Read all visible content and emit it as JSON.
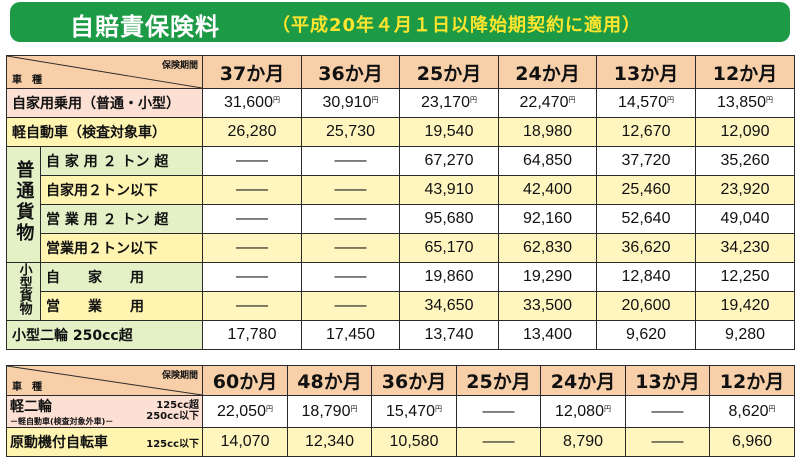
{
  "title": "自賠責保険料",
  "subtitle": "（平成20年４月１日以降始期契約に適用）",
  "table1": {
    "corner_top": "保険期間",
    "corner_bottom": "車　種",
    "periods": [
      "37か月",
      "36か月",
      "25か月",
      "24か月",
      "13か月",
      "12か月"
    ],
    "rows": [
      {
        "label": "自家用乗用（普通・小型）",
        "values": [
          "31,600",
          "30,910",
          "23,170",
          "22,470",
          "14,570",
          "13,850"
        ],
        "yen": true
      },
      {
        "label": "軽自動車（検査対象車）",
        "values": [
          "26,280",
          "25,730",
          "19,540",
          "18,980",
          "12,670",
          "12,090"
        ],
        "yen": false
      }
    ],
    "group_futsu": {
      "side": "普通貨物",
      "rows": [
        {
          "label": "自 家 用 ２ トン 超",
          "values": [
            "――",
            "――",
            "67,270",
            "64,850",
            "37,720",
            "35,260"
          ]
        },
        {
          "label": "自家用２トン以下",
          "values": [
            "――",
            "――",
            "43,910",
            "42,400",
            "25,460",
            "23,920"
          ]
        },
        {
          "label": "営 業 用 ２ トン 超",
          "values": [
            "――",
            "――",
            "95,680",
            "92,160",
            "52,640",
            "49,040"
          ]
        },
        {
          "label": "営業用２トン以下",
          "values": [
            "――",
            "――",
            "65,170",
            "62,830",
            "36,620",
            "34,230"
          ]
        }
      ]
    },
    "group_kogata": {
      "side": "小型貨物",
      "rows": [
        {
          "label": "自　　家　　用",
          "values": [
            "――",
            "――",
            "19,860",
            "19,290",
            "12,840",
            "12,250"
          ]
        },
        {
          "label": "営　　業　　用",
          "values": [
            "――",
            "――",
            "34,650",
            "33,500",
            "20,600",
            "19,420"
          ]
        }
      ]
    },
    "last_row": {
      "label": "小型二輪 250cc超",
      "values": [
        "17,780",
        "17,450",
        "13,740",
        "13,400",
        "9,620",
        "9,280"
      ]
    }
  },
  "table2": {
    "corner_top": "保険期間",
    "corner_bottom": "車　種",
    "periods": [
      "60か月",
      "48か月",
      "36か月",
      "25か月",
      "24か月",
      "13か月",
      "12か月"
    ],
    "row1": {
      "label_main": "軽二輪",
      "label_sub": "－軽自動車(検査対象外車)－",
      "label_right_top": "125cc超",
      "label_right_bottom": "250cc以下",
      "values": [
        "22,050",
        "18,790",
        "15,470",
        "――",
        "12,080",
        "――",
        "8,620"
      ]
    },
    "row2": {
      "label_main": "原動機付自転車",
      "label_right": "125cc以下",
      "values": [
        "14,070",
        "12,340",
        "10,580",
        "――",
        "8,790",
        "――",
        "6,960"
      ]
    }
  },
  "yen_mark": "円"
}
